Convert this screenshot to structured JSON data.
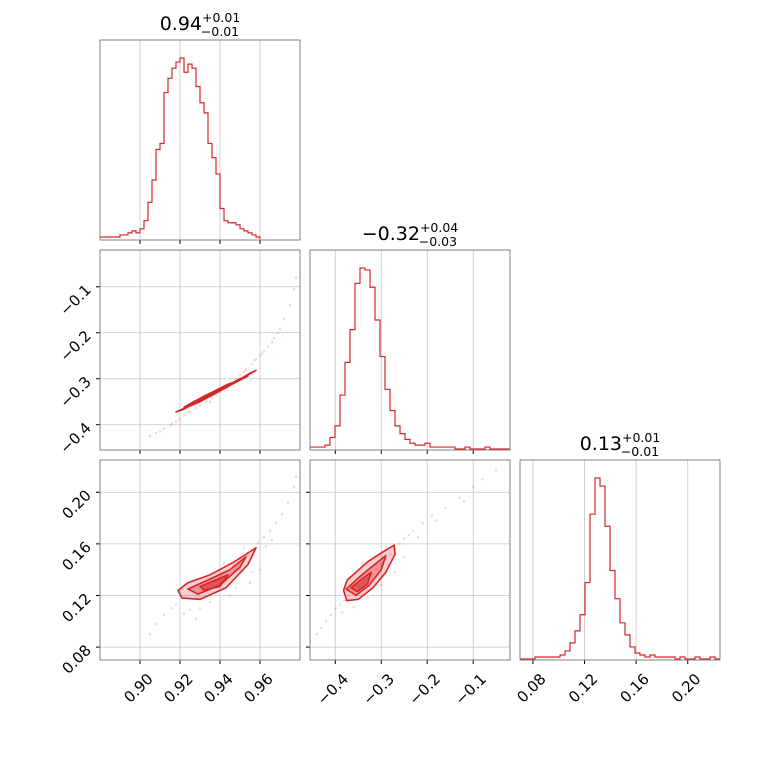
{
  "colors": {
    "series": "#d62728",
    "frame": "#808080",
    "grid": "#c4c4c4"
  },
  "chart_data": {
    "type": "corner",
    "parameters": [
      {
        "range": [
          0.88,
          0.98
        ],
        "ticks": [
          0.9,
          0.92,
          0.94,
          0.96
        ],
        "tick_labels": [
          "0.90",
          "0.92",
          "0.94",
          "0.96"
        ]
      },
      {
        "range": [
          -0.455,
          -0.02
        ],
        "ticks": [
          -0.4,
          -0.3,
          -0.2,
          -0.1
        ],
        "tick_labels": [
          "−0.4",
          "−0.3",
          "−0.2",
          "−0.1"
        ]
      },
      {
        "range": [
          0.07,
          0.225
        ],
        "ticks": [
          0.08,
          0.12,
          0.16,
          0.2
        ],
        "tick_labels": [
          "0.08",
          "0.12",
          "0.16",
          "0.20"
        ]
      }
    ],
    "titles": [
      {
        "main": "0.94",
        "sup": "+0.01",
        "sub": "−0.01"
      },
      {
        "main": "−0.32",
        "sup": "+0.04",
        "sub": "−0.03"
      },
      {
        "main": "0.13",
        "sup": "+0.01",
        "sub": "−0.01"
      }
    ],
    "histograms": [
      {
        "x_start": 0.88,
        "bin_width": 0.002,
        "counts": [
          1,
          1,
          1,
          1,
          1,
          2,
          2,
          3,
          4,
          3,
          5,
          9,
          18,
          29,
          44,
          47,
          72,
          79,
          84,
          87,
          89,
          82,
          86,
          84,
          75,
          67,
          62,
          47,
          40,
          32,
          15,
          9,
          8,
          8,
          7,
          5,
          4,
          3,
          2,
          1
        ]
      },
      {
        "x_start": -0.455,
        "bin_width": 0.010875,
        "counts": [
          1,
          1,
          1,
          2,
          6,
          12,
          28,
          45,
          62,
          86,
          94,
          93,
          84,
          67,
          48,
          31,
          20,
          12,
          8,
          5,
          3,
          2,
          2,
          3,
          1,
          1,
          1,
          1,
          1,
          0,
          0,
          1,
          0,
          0,
          0,
          1,
          0,
          0,
          0,
          0
        ]
      },
      {
        "x_start": 0.07,
        "bin_width": 0.003875,
        "counts": [
          0,
          0,
          0,
          1,
          1,
          1,
          1,
          1,
          2,
          4,
          8,
          14,
          22,
          38,
          72,
          90,
          86,
          66,
          44,
          30,
          18,
          12,
          6,
          3,
          2,
          1,
          2,
          1,
          1,
          1,
          1,
          0,
          1,
          0,
          0,
          1,
          0,
          0,
          1,
          0
        ]
      }
    ],
    "scatter": [
      {
        "x_param": 0,
        "y_param": 1,
        "points": [
          [
            0.905,
            -0.425
          ],
          [
            0.908,
            -0.418
          ],
          [
            0.91,
            -0.415
          ],
          [
            0.912,
            -0.408
          ],
          [
            0.915,
            -0.402
          ],
          [
            0.918,
            -0.393
          ],
          [
            0.92,
            -0.388
          ],
          [
            0.922,
            -0.38
          ],
          [
            0.925,
            -0.372
          ],
          [
            0.928,
            -0.364
          ],
          [
            0.93,
            -0.358
          ],
          [
            0.933,
            -0.35
          ],
          [
            0.936,
            -0.342
          ],
          [
            0.938,
            -0.336
          ],
          [
            0.94,
            -0.328
          ],
          [
            0.943,
            -0.32
          ],
          [
            0.946,
            -0.31
          ],
          [
            0.948,
            -0.3
          ],
          [
            0.95,
            -0.292
          ],
          [
            0.953,
            -0.28
          ],
          [
            0.956,
            -0.268
          ],
          [
            0.958,
            -0.258
          ],
          [
            0.961,
            -0.245
          ],
          [
            0.964,
            -0.23
          ],
          [
            0.967,
            -0.212
          ],
          [
            0.97,
            -0.192
          ],
          [
            0.972,
            -0.17
          ],
          [
            0.975,
            -0.14
          ],
          [
            0.977,
            -0.105
          ],
          [
            0.978,
            -0.08
          ],
          [
            0.962,
            -0.24
          ],
          [
            0.966,
            -0.22
          ],
          [
            0.969,
            -0.2
          ],
          [
            0.957,
            -0.26
          ],
          [
            0.952,
            -0.285
          ],
          [
            0.924,
            -0.372
          ],
          [
            0.916,
            -0.398
          ],
          [
            0.935,
            -0.35
          ],
          [
            0.945,
            -0.31
          ],
          [
            0.96,
            -0.25
          ]
        ],
        "contours": [
          [
            [
              0.918,
              -0.372
            ],
            [
              0.93,
              -0.35
            ],
            [
              0.942,
              -0.322
            ],
            [
              0.955,
              -0.288
            ],
            [
              0.958,
              -0.282
            ],
            [
              0.946,
              -0.31
            ],
            [
              0.934,
              -0.338
            ],
            [
              0.922,
              -0.366
            ]
          ],
          [
            [
              0.922,
              -0.362
            ],
            [
              0.934,
              -0.34
            ],
            [
              0.946,
              -0.312
            ],
            [
              0.954,
              -0.294
            ],
            [
              0.95,
              -0.3
            ],
            [
              0.938,
              -0.328
            ],
            [
              0.926,
              -0.352
            ]
          ],
          [
            [
              0.926,
              -0.352
            ],
            [
              0.938,
              -0.33
            ],
            [
              0.948,
              -0.306
            ],
            [
              0.944,
              -0.312
            ],
            [
              0.932,
              -0.338
            ]
          ]
        ]
      },
      {
        "x_param": 0,
        "y_param": 2,
        "points": [
          [
            0.905,
            0.09
          ],
          [
            0.908,
            0.098
          ],
          [
            0.912,
            0.105
          ],
          [
            0.916,
            0.11
          ],
          [
            0.918,
            0.113
          ],
          [
            0.922,
            0.106
          ],
          [
            0.925,
            0.109
          ],
          [
            0.928,
            0.118
          ],
          [
            0.931,
            0.124
          ],
          [
            0.934,
            0.127
          ],
          [
            0.938,
            0.131
          ],
          [
            0.941,
            0.136
          ],
          [
            0.944,
            0.139
          ],
          [
            0.947,
            0.143
          ],
          [
            0.951,
            0.147
          ],
          [
            0.954,
            0.151
          ],
          [
            0.957,
            0.155
          ],
          [
            0.959,
            0.161
          ],
          [
            0.962,
            0.165
          ],
          [
            0.965,
            0.17
          ],
          [
            0.968,
            0.176
          ],
          [
            0.971,
            0.183
          ],
          [
            0.974,
            0.192
          ],
          [
            0.977,
            0.204
          ],
          [
            0.978,
            0.212
          ],
          [
            0.935,
            0.115
          ],
          [
            0.945,
            0.12
          ],
          [
            0.955,
            0.13
          ],
          [
            0.96,
            0.14
          ],
          [
            0.93,
            0.11
          ],
          [
            0.92,
            0.125
          ],
          [
            0.94,
            0.13
          ],
          [
            0.95,
            0.14
          ],
          [
            0.963,
            0.158
          ],
          [
            0.966,
            0.163
          ],
          [
            0.928,
            0.102
          ],
          [
            0.948,
            0.126
          ],
          [
            0.956,
            0.138
          ],
          [
            0.942,
            0.145
          ],
          [
            0.952,
            0.157
          ]
        ],
        "contours": [
          [
            [
              0.919,
              0.124
            ],
            [
              0.924,
              0.13
            ],
            [
              0.935,
              0.136
            ],
            [
              0.947,
              0.146
            ],
            [
              0.955,
              0.154
            ],
            [
              0.958,
              0.157
            ],
            [
              0.954,
              0.144
            ],
            [
              0.943,
              0.126
            ],
            [
              0.93,
              0.117
            ],
            [
              0.921,
              0.118
            ]
          ],
          [
            [
              0.924,
              0.125
            ],
            [
              0.934,
              0.132
            ],
            [
              0.945,
              0.14
            ],
            [
              0.953,
              0.15
            ],
            [
              0.95,
              0.142
            ],
            [
              0.94,
              0.128
            ],
            [
              0.929,
              0.121
            ]
          ],
          [
            [
              0.93,
              0.127
            ],
            [
              0.938,
              0.132
            ],
            [
              0.944,
              0.136
            ],
            [
              0.94,
              0.127
            ],
            [
              0.932,
              0.124
            ]
          ]
        ]
      },
      {
        "x_param": 1,
        "y_param": 2,
        "points": [
          [
            -0.44,
            0.09
          ],
          [
            -0.43,
            0.095
          ],
          [
            -0.42,
            0.1
          ],
          [
            -0.41,
            0.105
          ],
          [
            -0.4,
            0.11
          ],
          [
            -0.39,
            0.113
          ],
          [
            -0.385,
            0.107
          ],
          [
            -0.38,
            0.116
          ],
          [
            -0.37,
            0.12
          ],
          [
            -0.36,
            0.124
          ],
          [
            -0.35,
            0.127
          ],
          [
            -0.34,
            0.13
          ],
          [
            -0.33,
            0.133
          ],
          [
            -0.32,
            0.137
          ],
          [
            -0.31,
            0.14
          ],
          [
            -0.3,
            0.144
          ],
          [
            -0.29,
            0.148
          ],
          [
            -0.28,
            0.152
          ],
          [
            -0.27,
            0.156
          ],
          [
            -0.26,
            0.16
          ],
          [
            -0.25,
            0.164
          ],
          [
            -0.24,
            0.167
          ],
          [
            -0.23,
            0.17
          ],
          [
            -0.21,
            0.176
          ],
          [
            -0.19,
            0.182
          ],
          [
            -0.16,
            0.188
          ],
          [
            -0.13,
            0.196
          ],
          [
            -0.1,
            0.204
          ],
          [
            -0.08,
            0.21
          ],
          [
            -0.05,
            0.217
          ],
          [
            -0.36,
            0.111
          ],
          [
            -0.33,
            0.118
          ],
          [
            -0.3,
            0.128
          ],
          [
            -0.27,
            0.138
          ],
          [
            -0.25,
            0.15
          ],
          [
            -0.29,
            0.158
          ],
          [
            -0.34,
            0.145
          ],
          [
            -0.22,
            0.165
          ],
          [
            -0.18,
            0.178
          ],
          [
            -0.12,
            0.193
          ]
        ],
        "contours": [
          [
            [
              -0.382,
              0.124
            ],
            [
              -0.374,
              0.132
            ],
            [
              -0.355,
              0.138
            ],
            [
              -0.33,
              0.146
            ],
            [
              -0.3,
              0.153
            ],
            [
              -0.272,
              0.159
            ],
            [
              -0.27,
              0.152
            ],
            [
              -0.29,
              0.138
            ],
            [
              -0.318,
              0.126
            ],
            [
              -0.35,
              0.117
            ],
            [
              -0.375,
              0.116
            ]
          ],
          [
            [
              -0.376,
              0.125
            ],
            [
              -0.352,
              0.133
            ],
            [
              -0.325,
              0.141
            ],
            [
              -0.29,
              0.151
            ],
            [
              -0.3,
              0.14
            ],
            [
              -0.326,
              0.128
            ],
            [
              -0.355,
              0.12
            ]
          ],
          [
            [
              -0.366,
              0.126
            ],
            [
              -0.345,
              0.132
            ],
            [
              -0.322,
              0.138
            ],
            [
              -0.33,
              0.129
            ],
            [
              -0.352,
              0.123
            ]
          ]
        ]
      }
    ]
  }
}
